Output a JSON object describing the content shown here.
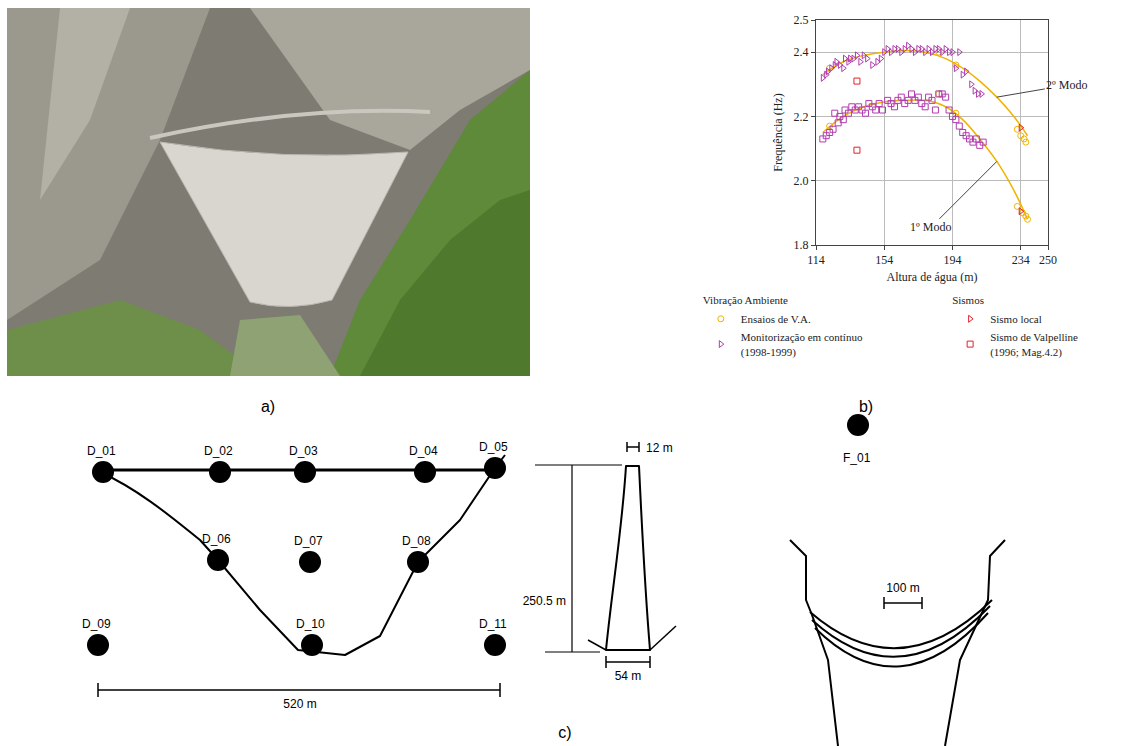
{
  "panel_labels": [
    "a)",
    "b)",
    "c)"
  ],
  "chart_data": {
    "type": "scatter",
    "x_label": "Altura de água (m)",
    "y_label": "Frequência (Hz)",
    "xlim": [
      114,
      250
    ],
    "xticks": [
      114,
      154,
      194,
      234,
      250
    ],
    "ylim": [
      1.8,
      2.5
    ],
    "yticks": [
      1.8,
      {
        "value": 2,
        "label": "2.0"
      },
      2.2,
      2.4,
      2.5
    ],
    "grid": true,
    "legend": "bottom",
    "series": [
      {
        "name": "2º Modo",
        "type": "line",
        "color": "#f0b400",
        "line_style": "solid",
        "x": [
          118,
          130,
          142,
          154,
          166,
          178,
          190,
          200,
          210,
          220,
          230,
          238
        ],
        "values": [
          2.33,
          2.37,
          2.39,
          2.4,
          2.405,
          2.4,
          2.38,
          2.35,
          2.31,
          2.26,
          2.2,
          2.14
        ]
      },
      {
        "name": "1º Modo",
        "type": "line",
        "color": "#f0b400",
        "line_style": "solid",
        "x": [
          118,
          130,
          142,
          154,
          166,
          178,
          190,
          200,
          210,
          220,
          230,
          238
        ],
        "values": [
          2.15,
          2.2,
          2.23,
          2.245,
          2.25,
          2.25,
          2.23,
          2.19,
          2.13,
          2.06,
          1.97,
          1.88
        ]
      },
      {
        "name": "Ensaios de V.A.",
        "group": "Vibração Ambiente",
        "type": "scatter",
        "color": "#f0b400",
        "marker": "circle-open",
        "x": [
          122,
          186,
          196,
          232,
          234,
          236,
          237,
          122,
          186,
          196,
          232,
          235,
          237,
          238
        ],
        "values": [
          2.35,
          2.4,
          2.36,
          2.16,
          2.14,
          2.13,
          2.12,
          2.17,
          2.27,
          2.21,
          1.92,
          1.9,
          1.89,
          1.88
        ]
      },
      {
        "name": "Monitorização em contínuo (1998-1999)",
        "group": "Vibração Ambiente",
        "type": "scatter",
        "color": "#b03cb0",
        "marker": "triangle-right-open",
        "x": [
          118,
          120,
          121,
          123,
          125,
          126,
          128,
          130,
          131,
          133,
          134,
          136,
          138,
          140,
          142,
          144,
          147,
          150,
          152,
          154,
          156,
          158,
          160,
          162,
          164,
          166,
          168,
          170,
          172,
          174,
          176,
          178,
          180,
          182,
          184,
          186,
          188,
          190,
          192,
          194,
          196,
          198,
          200,
          202,
          205,
          207,
          209,
          211
        ],
        "values": [
          2.32,
          2.33,
          2.34,
          2.35,
          2.36,
          2.37,
          2.36,
          2.35,
          2.38,
          2.37,
          2.38,
          2.38,
          2.39,
          2.37,
          2.39,
          2.38,
          2.36,
          2.37,
          2.38,
          2.4,
          2.41,
          2.4,
          2.41,
          2.41,
          2.4,
          2.41,
          2.42,
          2.41,
          2.4,
          2.41,
          2.41,
          2.4,
          2.41,
          2.4,
          2.41,
          2.41,
          2.4,
          2.41,
          2.4,
          2.4,
          2.35,
          2.4,
          2.33,
          2.34,
          2.3,
          2.28,
          2.27,
          2.27
        ]
      },
      {
        "type": "scatter",
        "color": "#b03cb0",
        "marker": "square-open",
        "x": [
          118,
          120,
          122,
          124,
          125,
          127,
          128,
          130,
          131,
          133,
          135,
          137,
          139,
          141,
          143,
          145,
          147,
          149,
          151,
          153,
          156,
          158,
          160,
          162,
          164,
          166,
          168,
          170,
          172,
          174,
          176,
          178,
          180,
          182,
          184,
          186,
          188,
          190,
          192,
          194,
          196,
          198,
          200,
          202,
          204,
          206,
          208,
          210,
          212
        ],
        "values": [
          2.13,
          2.14,
          2.15,
          2.16,
          2.21,
          2.18,
          2.2,
          2.19,
          2.22,
          2.21,
          2.23,
          2.22,
          2.23,
          2.22,
          2.21,
          2.24,
          2.23,
          2.22,
          2.24,
          2.22,
          2.25,
          2.24,
          2.23,
          2.25,
          2.26,
          2.24,
          2.25,
          2.27,
          2.25,
          2.26,
          2.24,
          2.23,
          2.26,
          2.25,
          2.22,
          2.27,
          2.27,
          2.26,
          2.22,
          2.2,
          2.19,
          2.17,
          2.15,
          2.14,
          2.13,
          2.12,
          2.13,
          2.11,
          2.12
        ]
      },
      {
        "name": "Sismo local",
        "group": "Sismos",
        "type": "scatter",
        "color": "#e0202a",
        "marker": "triangle-right-open",
        "x": [
          234,
          234
        ],
        "values": [
          2.165,
          1.905
        ]
      },
      {
        "name": "Sismo de Valpelline (1996; Mag.4.2)",
        "group": "Sismos",
        "type": "scatter",
        "color": "#e0202a",
        "marker": "square-open",
        "x": [
          138,
          138
        ],
        "values": [
          2.31,
          2.095
        ]
      }
    ]
  },
  "diagram": {
    "elevation": {
      "points": [
        "D_01",
        "D_02",
        "D_03",
        "D_04",
        "D_05",
        "D_06",
        "D_07",
        "D_08",
        "D_09",
        "D_10",
        "D_11"
      ],
      "width_label": "520 m"
    },
    "section": {
      "height_label": "250.5 m",
      "crest_label": "12 m",
      "base_label": "54 m"
    },
    "plan": {
      "points": [
        "F_01"
      ],
      "scale_label": "100 m"
    }
  }
}
